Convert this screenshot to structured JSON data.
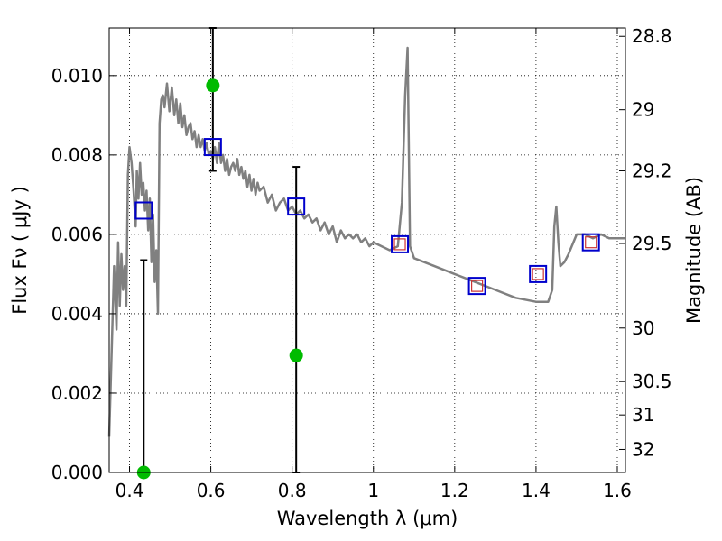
{
  "chart_data": {
    "type": "scatter",
    "title": "",
    "xlabel": "Wavelength  λ (μm)",
    "ylabel": "Flux  Fν  ( μJy )",
    "ylabel_right": "Magnitude (AB)",
    "xlim": [
      0.35,
      1.62
    ],
    "ylim": [
      0,
      0.0112
    ],
    "grid": true,
    "legend": "none",
    "x_ticks": [
      {
        "value": 0.4,
        "label": "0.4"
      },
      {
        "value": 0.6,
        "label": "0.6"
      },
      {
        "value": 0.8,
        "label": "0.8"
      },
      {
        "value": 1.0,
        "label": "1"
      },
      {
        "value": 1.2,
        "label": "1.2"
      },
      {
        "value": 1.4,
        "label": "1.4"
      },
      {
        "value": 1.6,
        "label": "1.6"
      }
    ],
    "y_ticks": [
      {
        "value": 0.0,
        "label": "0.000"
      },
      {
        "value": 0.002,
        "label": "0.002"
      },
      {
        "value": 0.004,
        "label": "0.004"
      },
      {
        "value": 0.006,
        "label": "0.006"
      },
      {
        "value": 0.008,
        "label": "0.008"
      },
      {
        "value": 0.01,
        "label": "0.010"
      }
    ],
    "right_ticks": [
      {
        "label": "28.8",
        "flux": 0.01099
      },
      {
        "label": "29",
        "flux": 0.00914
      },
      {
        "label": "29.2",
        "flux": 0.0076
      },
      {
        "label": "29.5",
        "flux": 0.00577
      },
      {
        "label": "30",
        "flux": 0.00364
      },
      {
        "label": "30.5",
        "flux": 0.00229
      },
      {
        "label": "31",
        "flux": 0.00145
      },
      {
        "label": "32",
        "flux": 0.00058
      }
    ],
    "colors": {
      "model": "#808080",
      "observed": "#00bb00",
      "model_box": "#0000cc",
      "model_box_inner": "#cc3333",
      "errorbar": "#000000",
      "grid": "#000000"
    },
    "series": [
      {
        "kind": "sed_model",
        "x": [
          0.35,
          0.362,
          0.368,
          0.372,
          0.376,
          0.38,
          0.384,
          0.388,
          0.392,
          0.396,
          0.4,
          0.405,
          0.41,
          0.415,
          0.418,
          0.422,
          0.426,
          0.43,
          0.434,
          0.438,
          0.442,
          0.446,
          0.45,
          0.454,
          0.458,
          0.462,
          0.466,
          0.47,
          0.474,
          0.478,
          0.482,
          0.486,
          0.492,
          0.498,
          0.504,
          0.51,
          0.515,
          0.52,
          0.525,
          0.53,
          0.535,
          0.54,
          0.545,
          0.55,
          0.555,
          0.56,
          0.565,
          0.57,
          0.575,
          0.58,
          0.585,
          0.59,
          0.595,
          0.6,
          0.605,
          0.61,
          0.615,
          0.62,
          0.625,
          0.63,
          0.635,
          0.64,
          0.645,
          0.65,
          0.655,
          0.66,
          0.665,
          0.67,
          0.675,
          0.68,
          0.685,
          0.69,
          0.695,
          0.7,
          0.705,
          0.71,
          0.715,
          0.72,
          0.73,
          0.74,
          0.75,
          0.76,
          0.77,
          0.78,
          0.79,
          0.8,
          0.81,
          0.82,
          0.83,
          0.84,
          0.85,
          0.86,
          0.87,
          0.88,
          0.89,
          0.9,
          0.91,
          0.92,
          0.93,
          0.94,
          0.95,
          0.96,
          0.97,
          0.98,
          0.99,
          1.0,
          1.02,
          1.04,
          1.06,
          1.07,
          1.078,
          1.084,
          1.09,
          1.1,
          1.15,
          1.2,
          1.25,
          1.3,
          1.35,
          1.4,
          1.43,
          1.44,
          1.445,
          1.45,
          1.455,
          1.46,
          1.47,
          1.48,
          1.5,
          1.52,
          1.54,
          1.56,
          1.58,
          1.6,
          1.62
        ],
        "y": [
          0.0009,
          0.0052,
          0.0036,
          0.0058,
          0.0042,
          0.0055,
          0.0046,
          0.0052,
          0.0042,
          0.0075,
          0.0082,
          0.0078,
          0.0071,
          0.0062,
          0.0076,
          0.0069,
          0.0078,
          0.007,
          0.0073,
          0.0066,
          0.0071,
          0.0061,
          0.0069,
          0.0053,
          0.0065,
          0.0048,
          0.0056,
          0.004,
          0.0088,
          0.0094,
          0.0095,
          0.0092,
          0.0098,
          0.0091,
          0.0097,
          0.009,
          0.0094,
          0.0088,
          0.0093,
          0.0087,
          0.009,
          0.0085,
          0.0087,
          0.0088,
          0.0084,
          0.0086,
          0.0082,
          0.0085,
          0.0082,
          0.0084,
          0.0081,
          0.0083,
          0.008,
          0.0081,
          0.0079,
          0.0082,
          0.0078,
          0.0083,
          0.0078,
          0.008,
          0.0076,
          0.0079,
          0.0075,
          0.0077,
          0.0078,
          0.0076,
          0.0079,
          0.0075,
          0.0077,
          0.0074,
          0.0076,
          0.0072,
          0.0075,
          0.0071,
          0.0074,
          0.007,
          0.0073,
          0.0071,
          0.0072,
          0.0068,
          0.007,
          0.0066,
          0.0068,
          0.0069,
          0.0066,
          0.0067,
          0.0065,
          0.0066,
          0.0064,
          0.0065,
          0.0063,
          0.0064,
          0.0061,
          0.0063,
          0.006,
          0.0062,
          0.0058,
          0.0061,
          0.0059,
          0.006,
          0.0059,
          0.006,
          0.0058,
          0.0059,
          0.0057,
          0.0058,
          0.0057,
          0.0056,
          0.0057,
          0.0068,
          0.0095,
          0.0107,
          0.0057,
          0.0054,
          0.0052,
          0.005,
          0.0048,
          0.0046,
          0.0044,
          0.0043,
          0.0043,
          0.0046,
          0.0062,
          0.0067,
          0.0058,
          0.0052,
          0.0053,
          0.0055,
          0.006,
          0.006,
          0.0059,
          0.006,
          0.0059,
          0.0059,
          0.0059
        ]
      },
      {
        "kind": "observed",
        "points": [
          {
            "x": 0.435,
            "y": 0.0,
            "err_hi": 0.00535
          },
          {
            "x": 0.605,
            "y": 0.00975,
            "err_lo": 0.0076,
            "err_hi": 0.0112
          },
          {
            "x": 0.81,
            "y": 0.00295,
            "err_lo": 0.0,
            "err_hi": 0.0077
          }
        ]
      },
      {
        "kind": "model_synthetic",
        "points": [
          {
            "x": 0.435,
            "y": 0.0066,
            "inner": false
          },
          {
            "x": 0.605,
            "y": 0.0082,
            "inner": false
          },
          {
            "x": 0.81,
            "y": 0.0067,
            "inner": false
          },
          {
            "x": 1.065,
            "y": 0.00575,
            "inner": true
          },
          {
            "x": 1.255,
            "y": 0.0047,
            "inner": true
          },
          {
            "x": 1.405,
            "y": 0.005,
            "inner": true
          },
          {
            "x": 1.535,
            "y": 0.0058,
            "inner": true
          }
        ]
      }
    ]
  }
}
